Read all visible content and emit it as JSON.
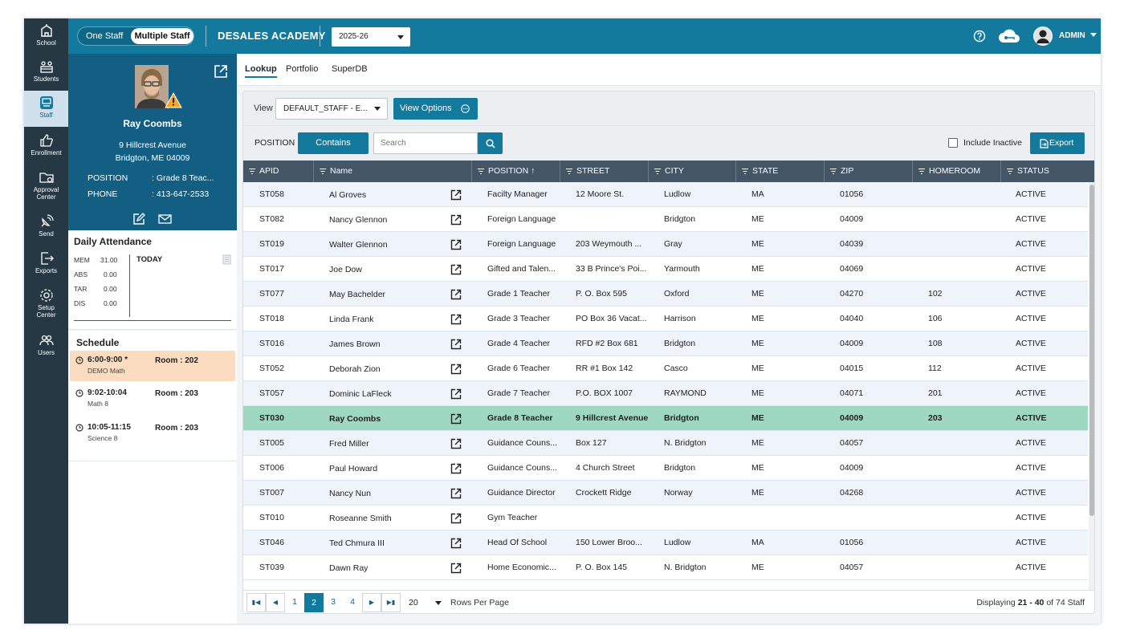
{
  "nav": {
    "items": [
      {
        "label": "School",
        "icon": "school-icon"
      },
      {
        "label": "Students",
        "icon": "students-icon"
      },
      {
        "label": "Staff",
        "icon": "staff-icon"
      },
      {
        "label": "Enrollment",
        "icon": "thumbs-up-icon"
      },
      {
        "label": "Approval",
        "label2": "Center",
        "icon": "folder-gear-icon"
      },
      {
        "label": "Send",
        "icon": "satellite-icon"
      },
      {
        "label": "Exports",
        "icon": "export-icon"
      },
      {
        "label": "Setup",
        "label2": "Center",
        "icon": "gear-icon"
      },
      {
        "label": "Users",
        "icon": "users-icon"
      }
    ]
  },
  "topbar": {
    "toggle_one": "One Staff",
    "toggle_multiple": "Multiple Staff",
    "school_name": "DESALES ACADEMY",
    "year": "2025-26",
    "admin_label": "ADMIN"
  },
  "profile": {
    "name": "Ray Coombs",
    "address_line1": "9 Hillcrest Avenue",
    "address_line2": "Bridgton, ME 04009",
    "position_label": "POSITION",
    "position_value": ": Grade 8 Teac...",
    "phone_label": "PHONE",
    "phone_value": ": 413-647-2533"
  },
  "attendance": {
    "title": "Daily Attendance",
    "today_label": "TODAY",
    "rows": [
      {
        "label": "MEM",
        "value": "31.00"
      },
      {
        "label": "ABS",
        "value": "0.00"
      },
      {
        "label": "TAR",
        "value": "0.00"
      },
      {
        "label": "DIS",
        "value": "0.00"
      }
    ]
  },
  "schedule": {
    "title": "Schedule",
    "items": [
      {
        "time": "6:00-9:00 *",
        "course": "DEMO Math",
        "room": "Room : 202",
        "active": true
      },
      {
        "time": "9:02-10:04",
        "course": "Math 8",
        "room": "Room : 203",
        "active": false
      },
      {
        "time": "10:05-11:15",
        "course": "Science 8",
        "room": "Room : 203",
        "active": false
      }
    ]
  },
  "tabs": [
    "Lookup",
    "Portfolio",
    "SuperDB"
  ],
  "toolbar": {
    "view_label": "View",
    "view_value": "DEFAULT_STAFF - E...",
    "view_options": "View Options",
    "position_label": "POSITION",
    "contains": "Contains",
    "search_placeholder": "Search",
    "include_inactive": "Include Inactive",
    "export": "Export"
  },
  "columns": [
    "APID",
    "Name",
    "POSITION ↑",
    "STREET",
    "CITY",
    "STATE",
    "ZIP",
    "HOMEROOM",
    "STATUS"
  ],
  "rows": [
    {
      "apid": "ST058",
      "name": "Al Groves",
      "position": "Facilty Manager",
      "street": "12 Moore St.",
      "city": "Ludlow",
      "state": "MA",
      "zip": "01056",
      "homeroom": "",
      "status": "ACTIVE"
    },
    {
      "apid": "ST082",
      "name": "Nancy Glennon",
      "position": "Foreign Language",
      "street": "",
      "city": "Bridgton",
      "state": "ME",
      "zip": "04009",
      "homeroom": "",
      "status": "ACTIVE"
    },
    {
      "apid": "ST019",
      "name": "Walter Glennon",
      "position": "Foreign Language",
      "street": "203 Weymouth ...",
      "city": "Gray",
      "state": "ME",
      "zip": "04039",
      "homeroom": "",
      "status": "ACTIVE"
    },
    {
      "apid": "ST017",
      "name": "Joe Dow",
      "position": "Gifted and Talen...",
      "street": "33 B Prince's Poi...",
      "city": "Yarmouth",
      "state": "ME",
      "zip": "04069",
      "homeroom": "",
      "status": "ACTIVE"
    },
    {
      "apid": "ST077",
      "name": "May Bachelder",
      "position": "Grade 1 Teacher",
      "street": "P. O. Box 595",
      "city": "Oxford",
      "state": "ME",
      "zip": "04270",
      "homeroom": "102",
      "status": "ACTIVE"
    },
    {
      "apid": "ST018",
      "name": "Linda Frank",
      "position": "Grade 3 Teacher",
      "street": "PO Box 36 Vacat...",
      "city": "Harrison",
      "state": "ME",
      "zip": "04040",
      "homeroom": "106",
      "status": "ACTIVE"
    },
    {
      "apid": "ST016",
      "name": "James Brown",
      "position": "Grade 4 Teacher",
      "street": "RFD #2 Box 681",
      "city": "Bridgton",
      "state": "ME",
      "zip": "04009",
      "homeroom": "108",
      "status": "ACTIVE"
    },
    {
      "apid": "ST052",
      "name": "Deborah Zion",
      "position": "Grade 6 Teacher",
      "street": "RR #1 Box 142",
      "city": "Casco",
      "state": "ME",
      "zip": "04015",
      "homeroom": "112",
      "status": "ACTIVE"
    },
    {
      "apid": "ST057",
      "name": "Dominic LaFleck",
      "position": "Grade 7 Teacher",
      "street": "P.O. BOX 1007",
      "city": "RAYMOND",
      "state": "ME",
      "zip": "04071",
      "homeroom": "201",
      "status": "ACTIVE"
    },
    {
      "apid": "ST030",
      "name": "Ray Coombs",
      "position": "Grade 8 Teacher",
      "street": "9 Hillcrest Avenue",
      "city": "Bridgton",
      "state": "ME",
      "zip": "04009",
      "homeroom": "203",
      "status": "ACTIVE",
      "selected": true
    },
    {
      "apid": "ST005",
      "name": "Fred Miller",
      "position": "Guidance Couns...",
      "street": "Box 127",
      "city": "N. Bridgton",
      "state": "ME",
      "zip": "04057",
      "homeroom": "",
      "status": "ACTIVE"
    },
    {
      "apid": "ST006",
      "name": "Paul Howard",
      "position": "Guidance Couns...",
      "street": "4 Church Street",
      "city": "Bridgton",
      "state": "ME",
      "zip": "04009",
      "homeroom": "",
      "status": "ACTIVE"
    },
    {
      "apid": "ST007",
      "name": "Nancy Nun",
      "position": "Guidance Director",
      "street": "Crockett Ridge",
      "city": "Norway",
      "state": "ME",
      "zip": "04268",
      "homeroom": "",
      "status": "ACTIVE"
    },
    {
      "apid": "ST010",
      "name": "Roseanne Smith",
      "position": "Gym Teacher",
      "street": "",
      "city": "",
      "state": "",
      "zip": "",
      "homeroom": "",
      "status": "ACTIVE"
    },
    {
      "apid": "ST046",
      "name": "Ted Chmura III",
      "position": "Head Of School",
      "street": "150 Lower Broo...",
      "city": "Ludlow",
      "state": "MA",
      "zip": "01056",
      "homeroom": "",
      "status": "ACTIVE"
    },
    {
      "apid": "ST039",
      "name": "Dawn Ray",
      "position": "Home Economic...",
      "street": "P. O. Box 145",
      "city": "N. Bridgton",
      "state": "ME",
      "zip": "04057",
      "homeroom": "",
      "status": "ACTIVE"
    }
  ],
  "pager": {
    "pages": [
      "1",
      "2",
      "3",
      "4"
    ],
    "current_page": "2",
    "rows_per_page": "20",
    "rows_per_page_label": "Rows Per Page",
    "displaying_prefix": "Displaying",
    "displaying_range": "21 - 40",
    "displaying_suffix": "of 74 Staff"
  },
  "colors": {
    "primary": "#137a9e",
    "nav_bg": "#253843",
    "profile_bg": "#135f84",
    "selected_row": "#9fd8c0",
    "active_schedule": "#fbdcc1",
    "header_bg": "#445565"
  }
}
